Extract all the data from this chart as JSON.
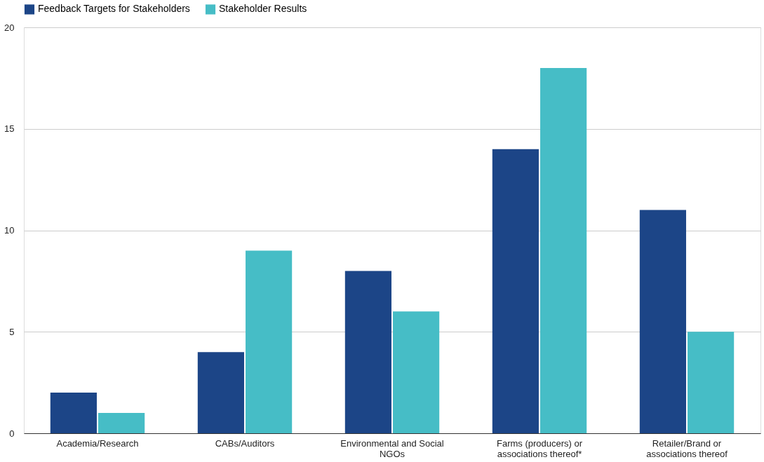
{
  "chart_data": {
    "type": "bar",
    "categories": [
      "Academia/Research",
      "CABs/Auditors",
      "Environmental and Social NGOs",
      "Farms (producers) or associations thereof*",
      "Retailer/Brand or associations thereof"
    ],
    "series": [
      {
        "name": "Feedback Targets for Stakeholders",
        "color": "#1c4587",
        "values": [
          2,
          4,
          8,
          14,
          11
        ]
      },
      {
        "name": "Stakeholder Results",
        "color": "#46bdc6",
        "values": [
          1,
          9,
          6,
          18,
          5
        ]
      }
    ],
    "ylim": [
      0,
      20
    ],
    "yticks": [
      0,
      5,
      10,
      15,
      20
    ],
    "grid": "y",
    "legend": "top"
  }
}
